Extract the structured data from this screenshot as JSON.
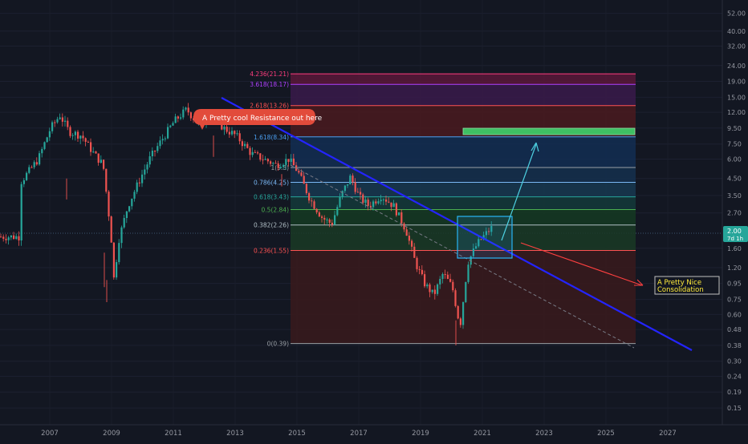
{
  "chart_data": {
    "type": "candlestick",
    "price_axis": {
      "scale": "log",
      "ticks": [
        "52.00",
        "40.00",
        "32.00",
        "24.00",
        "19.00",
        "15.00",
        "12.00",
        "9.50",
        "7.50",
        "6.00",
        "4.50",
        "3.50",
        "2.70",
        "1.60",
        "1.20",
        "0.95",
        "0.75",
        "0.60",
        "0.48",
        "0.38",
        "0.30",
        "0.24",
        "0.19",
        "0.15"
      ],
      "current_price": "2.00",
      "countdown": "7d 1h"
    },
    "time_axis": {
      "ticks": [
        "2007",
        "2009",
        "2011",
        "2013",
        "2015",
        "2017",
        "2019",
        "2021",
        "2023",
        "2025",
        "2027"
      ]
    },
    "fib_levels": [
      {
        "label": "4.236(21.21)",
        "color": "#ff3d7f"
      },
      {
        "label": "3.618(18.17)",
        "color": "#b040ff"
      },
      {
        "label": "2.618(13.26)",
        "color": "#ff5252"
      },
      {
        "label": "1.618(8.34)",
        "color": "#4a9ff0"
      },
      {
        "label": "1(5.3)",
        "color": "#9aa0a6"
      },
      {
        "label": "0.786(4.25)",
        "color": "#7ab8f5"
      },
      {
        "label": "0.618(3.43)",
        "color": "#26a69a"
      },
      {
        "label": "0.5(2.84)",
        "color": "#4caf50"
      },
      {
        "label": "0.382(2.26)",
        "color": "#b0bec5"
      },
      {
        "label": "0.236(1.55)",
        "color": "#ff5252"
      },
      {
        "label": "0(0.39)",
        "color": "#9aa0a6"
      }
    ],
    "annotations": {
      "resistance": "A Pretty cool Resistance out here",
      "consolidation_line1": "A Pretty Nice",
      "consolidation_line2": "Consolidation"
    },
    "colors": {
      "background": "#131722",
      "up": "#26a69a",
      "down": "#ef5350",
      "trendline": "#2424ff",
      "cyan_arrow": "#4dd0e1",
      "red_arrow": "#ff4040",
      "green_target": "#3fbf63"
    }
  }
}
